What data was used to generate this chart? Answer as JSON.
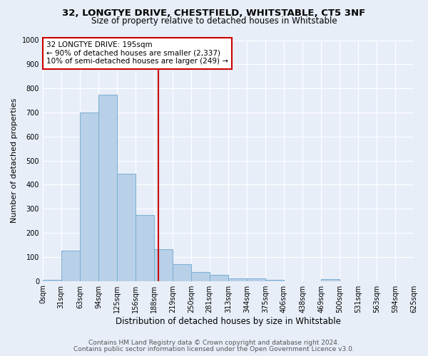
{
  "title": "32, LONGTYE DRIVE, CHESTFIELD, WHITSTABLE, CT5 3NF",
  "subtitle": "Size of property relative to detached houses in Whitstable",
  "xlabel": "Distribution of detached houses by size in Whitstable",
  "ylabel": "Number of detached properties",
  "bar_color": "#b8d0e8",
  "bar_edge_color": "#7aafd4",
  "background_color": "#e8eef8",
  "grid_color": "#ffffff",
  "bins": [
    0,
    31,
    63,
    94,
    125,
    156,
    188,
    219,
    250,
    281,
    313,
    344,
    375,
    406,
    438,
    469,
    500,
    531,
    563,
    594,
    625
  ],
  "bin_labels": [
    "0sqm",
    "31sqm",
    "63sqm",
    "94sqm",
    "125sqm",
    "156sqm",
    "188sqm",
    "219sqm",
    "250sqm",
    "281sqm",
    "313sqm",
    "344sqm",
    "375sqm",
    "406sqm",
    "438sqm",
    "469sqm",
    "500sqm",
    "531sqm",
    "563sqm",
    "594sqm",
    "625sqm"
  ],
  "values": [
    5,
    127,
    700,
    775,
    445,
    275,
    133,
    70,
    38,
    26,
    12,
    10,
    5,
    0,
    0,
    8,
    0,
    0,
    0,
    0
  ],
  "vline_x": 195,
  "vline_color": "#cc0000",
  "annotation_text": "32 LONGTYE DRIVE: 195sqm\n← 90% of detached houses are smaller (2,337)\n10% of semi-detached houses are larger (249) →",
  "annotation_box_edge_color": "#cc0000",
  "annotation_box_face_color": "#ffffff",
  "ylim": [
    0,
    1000
  ],
  "yticks": [
    0,
    100,
    200,
    300,
    400,
    500,
    600,
    700,
    800,
    900,
    1000
  ],
  "footer1": "Contains HM Land Registry data © Crown copyright and database right 2024.",
  "footer2": "Contains public sector information licensed under the Open Government Licence v3.0.",
  "title_fontsize": 9.5,
  "subtitle_fontsize": 8.5,
  "xlabel_fontsize": 8.5,
  "ylabel_fontsize": 8,
  "tick_fontsize": 7,
  "annotation_fontsize": 7.5,
  "footer_fontsize": 6.5
}
